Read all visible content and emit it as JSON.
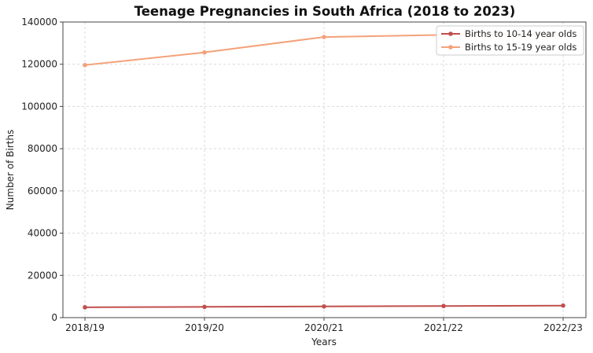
{
  "chart_data": {
    "type": "line",
    "title": "Teenage Pregnancies in South Africa (2018 to 2023)",
    "xlabel": "Years",
    "ylabel": "Number of Births",
    "categories": [
      "2018/19",
      "2019/20",
      "2020/21",
      "2021/22",
      "2022/23"
    ],
    "ylim": [
      0,
      140000
    ],
    "yticks": [
      0,
      20000,
      40000,
      60000,
      80000,
      100000,
      120000,
      140000
    ],
    "grid": true,
    "legend_position": "top-right",
    "series": [
      {
        "name": "Births to 10-14 year olds",
        "color": "#c0504d",
        "values": [
          4900,
          5100,
          5300,
          5500,
          5700
        ]
      },
      {
        "name": "Births to 15-19 year olds",
        "color": "#f4a27a",
        "values": [
          119600,
          125600,
          132900,
          133900,
          134000
        ]
      }
    ]
  }
}
